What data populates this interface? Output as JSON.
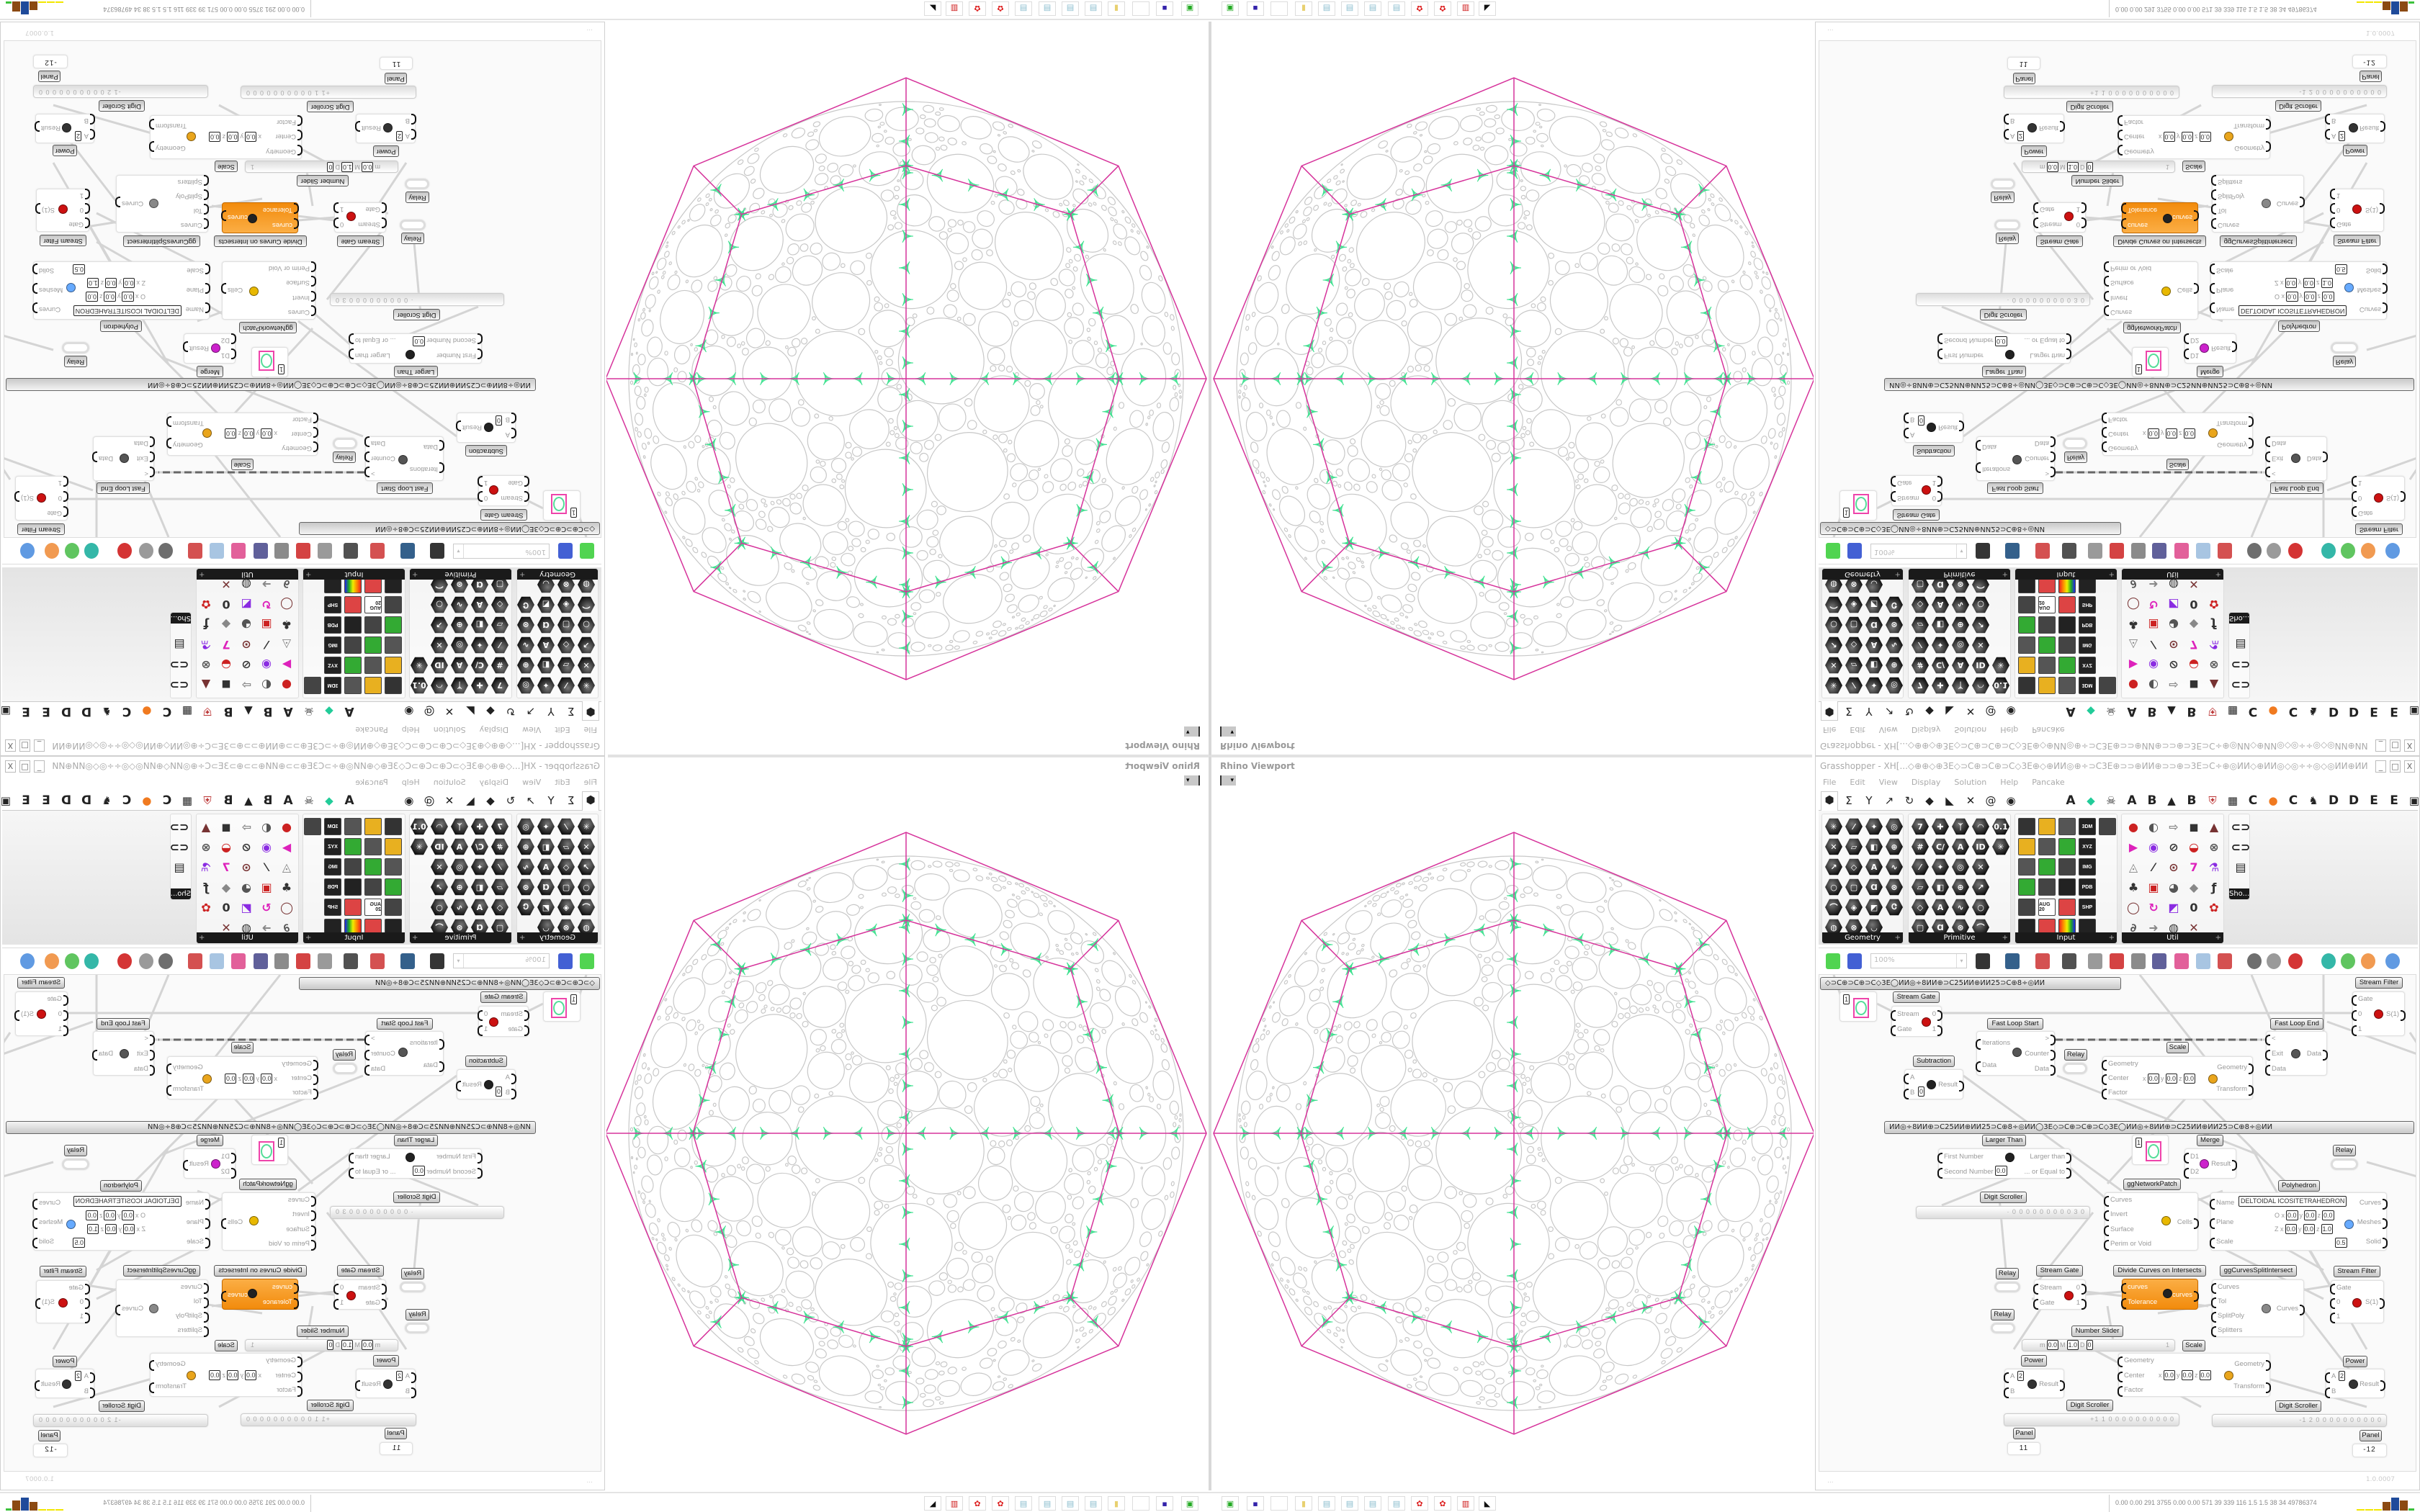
{
  "viewport": {
    "title": "Rhino Viewport",
    "dropdown_icon": "chevron-down-icon"
  },
  "gh": {
    "title": "Grasshopper - XH[...◇⊕⊕◇⊕3E◇⊃C⊕⊃C⊕⊃C◇3E⊕◇⊕ИИ◎⊕÷⊃C3E⊕⊃⊃⊕ИИ⊕⊃⊃⊕⊃3E⊃C÷⊕◎ИИ◇⊕ИИ◎◇◎÷÷◎◇◎ИИ⊕ИИ⊕◇ИИ◎⊕÷⊃C3E⊕⊃⊃...",
    "window_buttons": [
      "_",
      "□",
      "X"
    ],
    "menu": [
      "File",
      "Edit",
      "View",
      "Display",
      "Solution",
      "Help",
      "Pancake"
    ],
    "tabs": [
      {
        "icon": "params-hexagon"
      },
      {
        "icon": "maths-sigma"
      },
      {
        "icon": "sets-tree"
      },
      {
        "icon": "vector-arrow"
      },
      {
        "icon": "curve-hook"
      },
      {
        "icon": "surface-shape"
      },
      {
        "icon": "mesh-plane"
      },
      {
        "icon": "intersect-x"
      },
      {
        "icon": "transform-spiral"
      },
      {
        "icon": "display-eye"
      },
      {
        "label": "A"
      },
      {
        "icon": "green-gem"
      },
      {
        "icon": "skull"
      },
      {
        "label": "A"
      },
      {
        "label": "B"
      },
      {
        "icon": "mountain"
      },
      {
        "label": "B"
      },
      {
        "icon": "shield"
      },
      {
        "icon": "grid"
      },
      {
        "label": "C"
      },
      {
        "icon": "orange-dot"
      },
      {
        "label": "C"
      },
      {
        "icon": "chicken"
      },
      {
        "label": "D"
      },
      {
        "label": "D"
      },
      {
        "label": "E"
      },
      {
        "label": "E"
      },
      {
        "icon": "box"
      }
    ],
    "ribbon_groups": [
      {
        "label": "Geometry",
        "expand": "+"
      },
      {
        "label": "Primitive",
        "expand": "+"
      },
      {
        "label": "Input",
        "expand": "+"
      },
      {
        "label": "Util",
        "expand": "+"
      },
      {
        "label": "Sho..."
      }
    ],
    "input_icon_labels": [
      "3DM",
      "XYZ",
      "IMG",
      "PDB",
      "SHP",
      "AUG 20",
      "ID"
    ],
    "toolbar": {
      "zoom": "100%",
      "icons": [
        "new-file",
        "save",
        "zoom-extents",
        "preview-eye",
        "sketch-pen",
        "cluster",
        "email",
        "gha",
        "canvas-image",
        "search",
        "package",
        "bulb",
        "wire-cross",
        "wireframe-preview",
        "shaded-preview",
        "red-preview",
        "teal-preview",
        "green-preview",
        "orange-preview",
        "blue-sphere"
      ]
    },
    "group_bars": [
      "◇⊃C⊕⊃C⊕⊃C◇3E◯ИИ◎÷8ИИ⊕⊃C25ИИ⊕ИИ25⊃C⊕8÷◎ИИ",
      "ИИ◎÷8ИИ⊕⊃C25ИИ⊕ИИ25⊃C⊕8÷◎ИИ◯3E◇⊃C⊕⊃C⊕⊃C◇3E◯ИИ◎÷8ИИ⊕⊃C25ИИ⊕ИИ25⊃C⊕8÷◎ИИ"
    ],
    "nodes": [
      {
        "label": "Stream Gate",
        "inputs": [
          "Stream",
          "Gate"
        ],
        "outputs": [
          "0",
          "1"
        ],
        "icon": "stream-gate"
      },
      {
        "label": "Stream Filter",
        "inputs": [
          "Gate",
          "0",
          "1"
        ],
        "outputs": [
          "S(1)"
        ],
        "icon": "stream-filter"
      },
      {
        "label": "Fast Loop Start",
        "inputs": [
          "Iterations",
          "Data"
        ],
        "outputs": [
          ">",
          "Counter",
          "Data"
        ],
        "icon": "loop-start"
      },
      {
        "label": "Fast Loop End",
        "inputs": [
          "<",
          "Exit",
          "Data"
        ],
        "outputs": [
          "Data"
        ],
        "icon": "loop-end"
      },
      {
        "label": "Relay"
      },
      {
        "label": "Scale",
        "inputs": [
          "Geometry",
          "Center",
          "Factor"
        ],
        "outputs": [
          "Geometry",
          "Transform"
        ],
        "icon": "scale",
        "rows": [
          [
            {
              "k": "x",
              "v": "0.0"
            },
            {
              "k": "y",
              "v": "0.0"
            },
            {
              "k": "z",
              "v": "0.0"
            }
          ]
        ]
      },
      {
        "label": "Subtraction",
        "inputs": [
          "A",
          "B"
        ],
        "outputs": [
          "Result"
        ],
        "icon": "minus",
        "rows": [
          [
            {
              "k": "",
              "v": "0"
            }
          ]
        ]
      },
      {
        "label": "Larger Than",
        "inputs": [
          "First Number",
          "Second Number"
        ],
        "outputs": [
          "Larger than",
          "... or Equal to"
        ],
        "icon": "greater-than",
        "rows": [
          [
            {
              "k": "",
              "v": "0.0"
            }
          ]
        ]
      },
      {
        "label": "Merge",
        "inputs": [
          "D1",
          "D2"
        ],
        "outputs": [
          "Result"
        ],
        "icon": "merge"
      },
      {
        "label": "Relay"
      },
      {
        "label": "ggNetworkPatch",
        "inputs": [
          "Curves",
          "Invert",
          "Surface",
          "Perim or Void"
        ],
        "outputs": [
          "Cells"
        ],
        "icon": "network-patch"
      },
      {
        "label": "Polyhedron",
        "inputs": [
          "Name",
          "Plane",
          "Scale"
        ],
        "outputs": [
          "Curves",
          "Meshes",
          "Solid"
        ],
        "icon": "polyhedron",
        "field": "DELTOIDAL ICOSITETRAHEDRON",
        "rows": [
          [
            {
              "k": "O x",
              "v": "0.0"
            },
            {
              "k": "y",
              "v": "0.0"
            },
            {
              "k": "z",
              "v": "0.0"
            }
          ],
          [
            {
              "k": "Z x",
              "v": "0.0"
            },
            {
              "k": "y",
              "v": "0.0"
            },
            {
              "k": "z",
              "v": "1.0"
            }
          ],
          [
            {
              "k": "",
              "v": "0.5"
            }
          ]
        ]
      },
      {
        "label": "Digit Scroller",
        "value": "· 0 0 0 0 0 0 0 0 0 3 0"
      },
      {
        "label": "Relay"
      },
      {
        "label": "Stream Gate",
        "inputs": [
          "Stream",
          "Gate"
        ],
        "outputs": [
          "0",
          "1"
        ],
        "icon": "stream-gate"
      },
      {
        "label": "Divide Curves on Intersects",
        "inputs": [
          "curves",
          "Tolerance"
        ],
        "outputs": [
          "curves"
        ],
        "icon": "divide-curves"
      },
      {
        "label": "ggCurvesSplitIntersect",
        "inputs": [
          "Curves",
          "Tol",
          "SplitPoly",
          "Splitters"
        ],
        "outputs": [
          "Curves"
        ],
        "icon": "split-intersect"
      },
      {
        "label": "Stream Filter",
        "inputs": [
          "Gate",
          "0",
          "1"
        ],
        "outputs": [
          "S(1)"
        ],
        "icon": "stream-filter"
      },
      {
        "label": "Relay"
      },
      {
        "label": "Number Slider",
        "value": "1",
        "rows": [
          [
            {
              "k": "m",
              "v": "0.0"
            },
            {
              "k": "M",
              "v": "1.0"
            },
            {
              "k": "D",
              "v": "0"
            }
          ]
        ]
      },
      {
        "label": "Scale",
        "inputs": [
          "Geometry",
          "Center",
          "Factor"
        ],
        "outputs": [
          "Geometry",
          "Transform"
        ],
        "icon": "scale",
        "rows": [
          [
            {
              "k": "x",
              "v": "0.0"
            },
            {
              "k": "y",
              "v": "0.0"
            },
            {
              "k": "z",
              "v": "0.0"
            }
          ]
        ]
      },
      {
        "label": "Power",
        "inputs": [
          "A",
          "B"
        ],
        "outputs": [
          "Result"
        ],
        "icon": "power",
        "rows": [
          [
            {
              "k": "",
              "v": "2"
            }
          ]
        ]
      },
      {
        "label": "Power",
        "inputs": [
          "A",
          "B"
        ],
        "outputs": [
          "Result"
        ],
        "icon": "power",
        "rows": [
          [
            {
              "k": "",
              "v": "2"
            }
          ]
        ]
      },
      {
        "label": "Digit Scroller",
        "value": "+1 1 0 0 0 0 0 0 0 0 0 0"
      },
      {
        "label": "Digit Scroller",
        "value": "-1 2 0 0 0 0 0 0 0 0 0 0"
      },
      {
        "label": "Panel",
        "value": "11"
      },
      {
        "label": "Panel",
        "value": "-12"
      },
      {
        "value": "1",
        "icon": "circle-param"
      },
      {
        "value": "1",
        "icon": "circle-param"
      }
    ],
    "status_left": "...",
    "version": "1.0.0007"
  },
  "taskbar": {
    "icons": [
      "green-screen",
      "floppy-64",
      "blank",
      "folder",
      "notepad",
      "notepad",
      "notepad",
      "notepad",
      "red-app",
      "red-app",
      "red-gift",
      "wolf"
    ],
    "stats": "0.00  0.00  291  3755  0.00  0.00  571   39   339   116   1.5   1.5   38   34  49786374",
    "bar_colors": [
      "#f2e600",
      "#8b4a12",
      "#1f4a9a",
      "#8b4a12",
      "#3cc23c",
      "#d22"
    ]
  },
  "colors": {
    "polyhedron_lines": "#d6339b",
    "cusp_curves": "#3ee08f",
    "circles": "#c8c8c8",
    "component_orange": "#f7941d",
    "wires": "#d4d4d4"
  }
}
